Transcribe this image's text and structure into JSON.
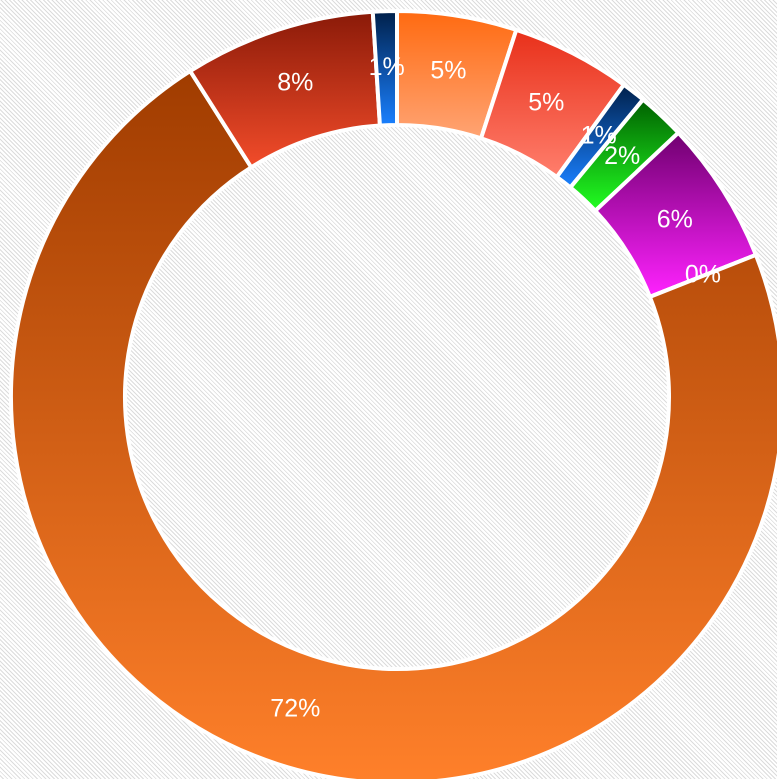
{
  "chart_data": {
    "type": "donut",
    "values": [
      5,
      5,
      1,
      2,
      6,
      0,
      72,
      8,
      1
    ],
    "value_labels": [
      "5%",
      "5%",
      "1%",
      "2%",
      "6%",
      "0%",
      "72%",
      "8%",
      "1%"
    ],
    "colors": [
      [
        "#ff6a10",
        "#ffa474"
      ],
      [
        "#e8301a",
        "#ff7e6c"
      ],
      [
        "#00204a",
        "#1a80ff"
      ],
      [
        "#006000",
        "#22ff22"
      ],
      [
        "#700070",
        "#ff22ff"
      ],
      [
        "#a0a0a0",
        "#d0d0d0"
      ],
      [
        "#a03c00",
        "#ff802a"
      ],
      [
        "#8a1a08",
        "#f24c2a"
      ],
      [
        "#00204a",
        "#1a80ff"
      ]
    ]
  }
}
